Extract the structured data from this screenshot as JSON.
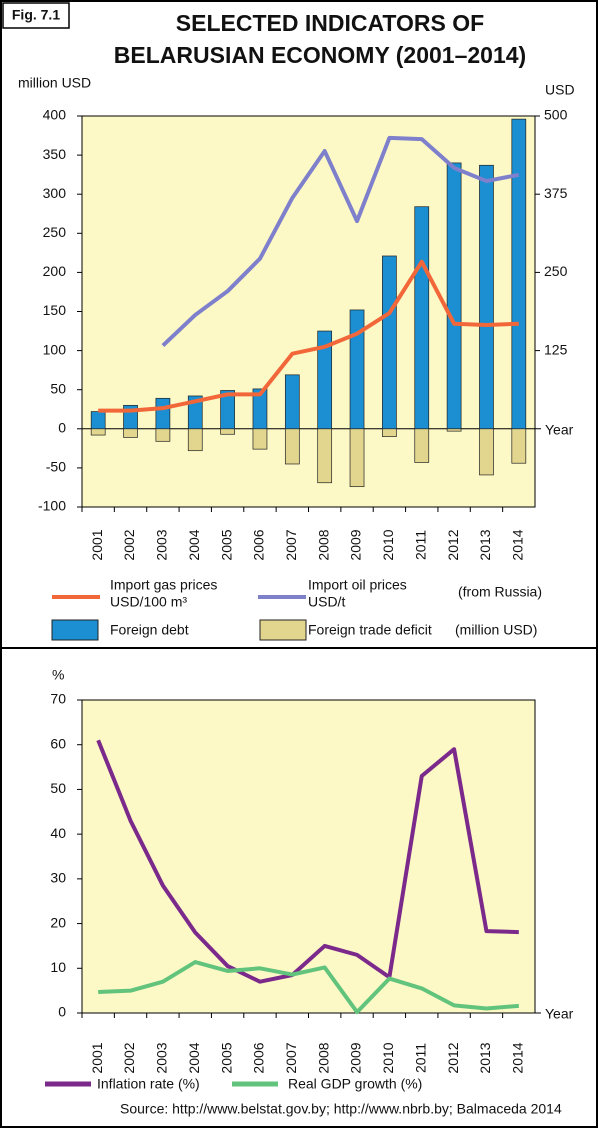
{
  "fig_label": "Fig. 7.1",
  "title_lines": [
    "SELECTED INDICATORS OF",
    "BELARUSIAN ECONOMY (2001–2014)"
  ],
  "source": "Source: http://www.belstat.gov.by; http://www.nbrb.by; Balmaceda 2014",
  "chart_data": [
    {
      "type": "bar",
      "y_label": "million USD",
      "y2_label": "USD",
      "x_label": "Year",
      "categories": [
        "2001",
        "2002",
        "2003",
        "2004",
        "2005",
        "2006",
        "2007",
        "2008",
        "2009",
        "2010",
        "2011",
        "2012",
        "2013",
        "2014"
      ],
      "ylim": [
        -100,
        400
      ],
      "yticks": [
        -100,
        -50,
        0,
        50,
        100,
        150,
        200,
        250,
        300,
        350,
        400
      ],
      "y2lim": [
        -125,
        500
      ],
      "y2ticks": [
        125,
        250,
        375,
        500
      ],
      "legend_notes": [
        "(from Russia)",
        "(million USD)"
      ],
      "series": [
        {
          "name": "Foreign debt",
          "type": "bar",
          "color": "#1b8fd2",
          "values": [
            22,
            30,
            39,
            42,
            49,
            51,
            69,
            125,
            152,
            221,
            284,
            340,
            337,
            396
          ]
        },
        {
          "name": "Foreign trade deficit",
          "type": "bar",
          "color": "#e2d58e",
          "values": [
            -8,
            -11,
            -16,
            -28,
            -7,
            -26,
            -45,
            -69,
            -74,
            -10,
            -43,
            -3,
            -59,
            -44
          ]
        },
        {
          "name": "Import gas prices",
          "unit": "USD/100 m³",
          "type": "line",
          "axis": "y2",
          "color": "#f2673a",
          "values": [
            29,
            29,
            33,
            44,
            55,
            55,
            120,
            131,
            152,
            185,
            267,
            168,
            166,
            168
          ]
        },
        {
          "name": "Import oil prices",
          "unit": "USD/t",
          "type": "line",
          "axis": "y2",
          "color": "#7f80cc",
          "values": [
            null,
            null,
            133,
            182,
            220,
            272,
            369,
            444,
            332,
            465,
            463,
            417,
            396,
            406
          ]
        }
      ]
    },
    {
      "type": "line",
      "y_label": "%",
      "x_label": "Year",
      "categories": [
        "2001",
        "2002",
        "2003",
        "2004",
        "2005",
        "2006",
        "2007",
        "2008",
        "2009",
        "2010",
        "2011",
        "2012",
        "2013",
        "2014"
      ],
      "ylim": [
        0,
        70
      ],
      "yticks": [
        0,
        10,
        20,
        30,
        40,
        50,
        60,
        70
      ],
      "series": [
        {
          "name": "Inflation rate (%)",
          "color": "#7b2a8c",
          "values": [
            61,
            43,
            28.5,
            18,
            10.5,
            7,
            8.5,
            15,
            13,
            8,
            53,
            59,
            18.3,
            18.1
          ]
        },
        {
          "name": "Real GDP growth (%)",
          "color": "#62c47c",
          "values": [
            4.7,
            5,
            7,
            11.4,
            9.4,
            10,
            8.6,
            10.2,
            0.2,
            7.7,
            5.5,
            1.7,
            1,
            1.6
          ]
        }
      ]
    }
  ]
}
